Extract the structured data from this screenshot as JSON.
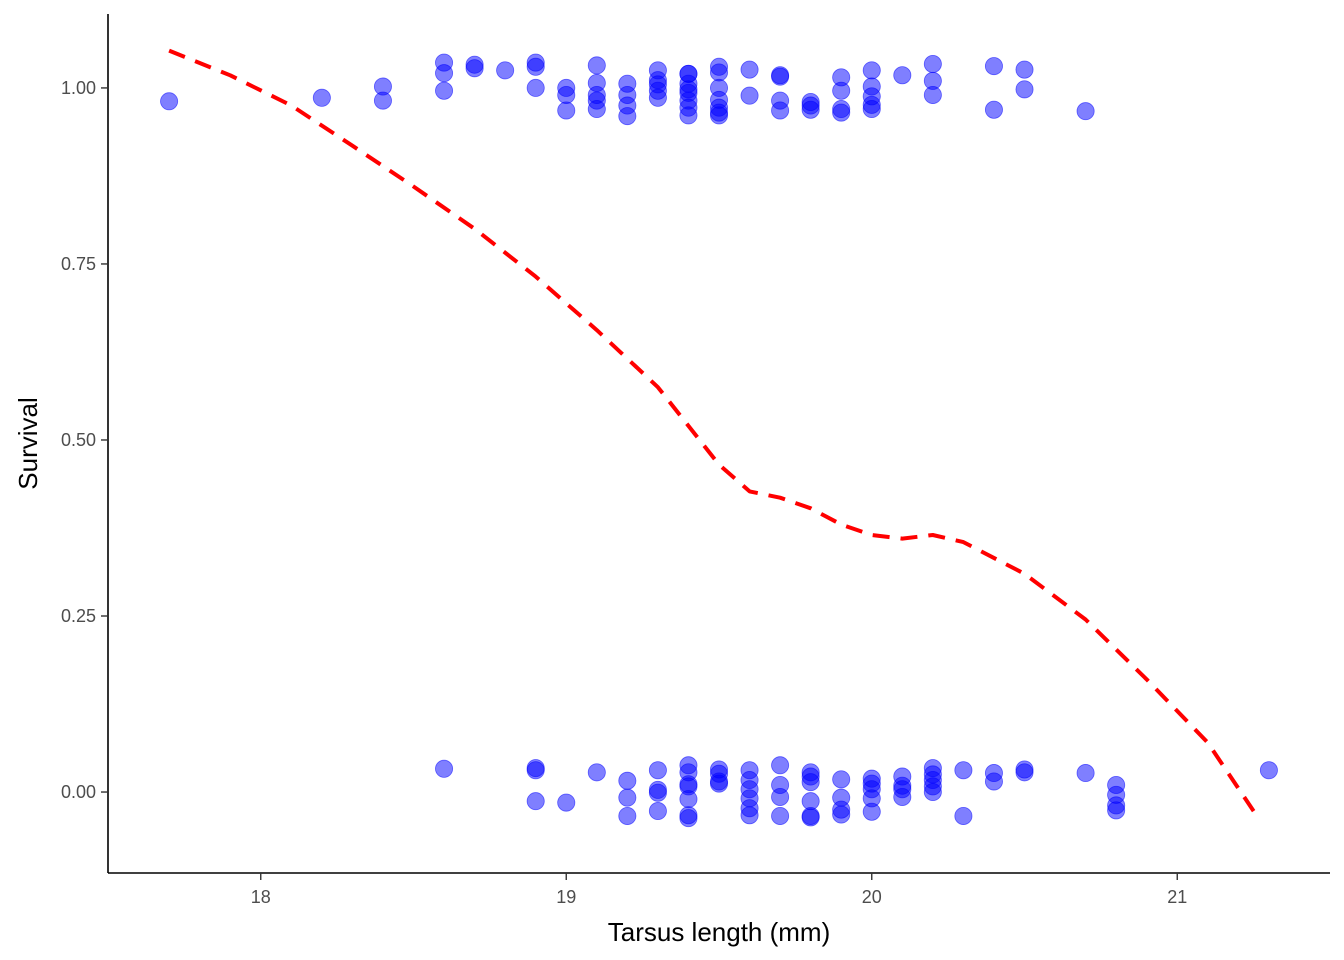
{
  "chart_data": {
    "type": "scatter",
    "title": "",
    "xlabel": "Tarsus length (mm)",
    "ylabel": "Survival",
    "xlim": [
      17.5,
      21.5
    ],
    "ylim": [
      -0.115,
      1.105
    ],
    "x_ticks": [
      18,
      19,
      20,
      21
    ],
    "x_tick_labels": [
      "18",
      "19",
      "20",
      "21"
    ],
    "y_ticks": [
      0,
      0.25,
      0.5,
      0.75,
      1.0
    ],
    "y_tick_labels": [
      "0.00",
      "0.25",
      "0.50",
      "0.75",
      "1.00"
    ],
    "grid": false,
    "legend": "none",
    "point_color": "#0000ff",
    "point_alpha": 0.5,
    "jitter": "points vertically jittered around 0 and 1",
    "points": [
      {
        "x": 17.7,
        "y": 0.981
      },
      {
        "x": 18.2,
        "y": 0.986
      },
      {
        "x": 18.4,
        "y": 1.002
      },
      {
        "x": 18.4,
        "y": 0.982
      },
      {
        "x": 18.6,
        "y": 1.036
      },
      {
        "x": 18.6,
        "y": 1.021
      },
      {
        "x": 18.6,
        "y": 0.996
      },
      {
        "x": 18.7,
        "y": 1.033
      },
      {
        "x": 18.7,
        "y": 1.028
      },
      {
        "x": 18.8,
        "y": 1.025
      },
      {
        "x": 18.9,
        "y": 1.036
      },
      {
        "x": 18.9,
        "y": 1.03
      },
      {
        "x": 18.9,
        "y": 1.0
      },
      {
        "x": 19.0,
        "y": 1.0
      },
      {
        "x": 19.0,
        "y": 0.99
      },
      {
        "x": 19.0,
        "y": 0.968
      },
      {
        "x": 19.1,
        "y": 1.032
      },
      {
        "x": 19.1,
        "y": 1.007
      },
      {
        "x": 19.1,
        "y": 0.99
      },
      {
        "x": 19.1,
        "y": 0.982
      },
      {
        "x": 19.1,
        "y": 0.97
      },
      {
        "x": 19.2,
        "y": 1.006
      },
      {
        "x": 19.2,
        "y": 0.99
      },
      {
        "x": 19.2,
        "y": 0.975
      },
      {
        "x": 19.2,
        "y": 0.96
      },
      {
        "x": 19.3,
        "y": 1.025
      },
      {
        "x": 19.3,
        "y": 1.011
      },
      {
        "x": 19.3,
        "y": 1.005
      },
      {
        "x": 19.3,
        "y": 0.996
      },
      {
        "x": 19.3,
        "y": 0.986
      },
      {
        "x": 19.4,
        "y": 1.02
      },
      {
        "x": 19.4,
        "y": 1.02
      },
      {
        "x": 19.4,
        "y": 1.006
      },
      {
        "x": 19.4,
        "y": 0.998
      },
      {
        "x": 19.4,
        "y": 0.993
      },
      {
        "x": 19.4,
        "y": 0.982
      },
      {
        "x": 19.4,
        "y": 0.972
      },
      {
        "x": 19.4,
        "y": 0.961
      },
      {
        "x": 19.5,
        "y": 1.03
      },
      {
        "x": 19.5,
        "y": 1.022
      },
      {
        "x": 19.5,
        "y": 1.0
      },
      {
        "x": 19.5,
        "y": 0.983
      },
      {
        "x": 19.5,
        "y": 0.972
      },
      {
        "x": 19.5,
        "y": 0.965
      },
      {
        "x": 19.5,
        "y": 0.961
      },
      {
        "x": 19.6,
        "y": 1.026
      },
      {
        "x": 19.6,
        "y": 0.989
      },
      {
        "x": 19.7,
        "y": 1.018
      },
      {
        "x": 19.7,
        "y": 1.016
      },
      {
        "x": 19.7,
        "y": 0.982
      },
      {
        "x": 19.7,
        "y": 0.968
      },
      {
        "x": 19.8,
        "y": 0.98
      },
      {
        "x": 19.8,
        "y": 0.975
      },
      {
        "x": 19.8,
        "y": 0.969
      },
      {
        "x": 19.9,
        "y": 1.015
      },
      {
        "x": 19.9,
        "y": 0.996
      },
      {
        "x": 19.9,
        "y": 0.97
      },
      {
        "x": 19.9,
        "y": 0.965
      },
      {
        "x": 20.0,
        "y": 1.025
      },
      {
        "x": 20.0,
        "y": 1.002
      },
      {
        "x": 20.0,
        "y": 0.988
      },
      {
        "x": 20.0,
        "y": 0.976
      },
      {
        "x": 20.0,
        "y": 0.97
      },
      {
        "x": 20.1,
        "y": 1.018
      },
      {
        "x": 20.2,
        "y": 1.034
      },
      {
        "x": 20.2,
        "y": 1.01
      },
      {
        "x": 20.2,
        "y": 0.99
      },
      {
        "x": 20.4,
        "y": 1.031
      },
      {
        "x": 20.4,
        "y": 0.969
      },
      {
        "x": 20.5,
        "y": 1.026
      },
      {
        "x": 20.5,
        "y": 0.998
      },
      {
        "x": 20.7,
        "y": 0.967
      },
      {
        "x": 18.6,
        "y": 0.033
      },
      {
        "x": 18.9,
        "y": 0.034
      },
      {
        "x": 18.9,
        "y": 0.031
      },
      {
        "x": 18.9,
        "y": -0.013
      },
      {
        "x": 19.0,
        "y": -0.015
      },
      {
        "x": 19.1,
        "y": 0.028
      },
      {
        "x": 19.2,
        "y": 0.016
      },
      {
        "x": 19.2,
        "y": -0.008
      },
      {
        "x": 19.2,
        "y": -0.034
      },
      {
        "x": 19.3,
        "y": 0.031
      },
      {
        "x": 19.3,
        "y": 0.003
      },
      {
        "x": 19.3,
        "y": -0.001
      },
      {
        "x": 19.3,
        "y": -0.027
      },
      {
        "x": 19.4,
        "y": 0.038
      },
      {
        "x": 19.4,
        "y": 0.028
      },
      {
        "x": 19.4,
        "y": 0.011
      },
      {
        "x": 19.4,
        "y": 0.008
      },
      {
        "x": 19.4,
        "y": -0.01
      },
      {
        "x": 19.4,
        "y": -0.033
      },
      {
        "x": 19.4,
        "y": -0.037
      },
      {
        "x": 19.5,
        "y": 0.032
      },
      {
        "x": 19.5,
        "y": 0.026
      },
      {
        "x": 19.5,
        "y": 0.015
      },
      {
        "x": 19.5,
        "y": 0.012
      },
      {
        "x": 19.6,
        "y": 0.031
      },
      {
        "x": 19.6,
        "y": 0.017
      },
      {
        "x": 19.6,
        "y": 0.004
      },
      {
        "x": 19.6,
        "y": -0.009
      },
      {
        "x": 19.6,
        "y": -0.023
      },
      {
        "x": 19.6,
        "y": -0.033
      },
      {
        "x": 19.7,
        "y": 0.038
      },
      {
        "x": 19.7,
        "y": 0.01
      },
      {
        "x": 19.7,
        "y": -0.007
      },
      {
        "x": 19.7,
        "y": -0.034
      },
      {
        "x": 19.8,
        "y": 0.028
      },
      {
        "x": 19.8,
        "y": 0.022
      },
      {
        "x": 19.8,
        "y": 0.014
      },
      {
        "x": 19.8,
        "y": -0.013
      },
      {
        "x": 19.8,
        "y": -0.034
      },
      {
        "x": 19.8,
        "y": -0.036
      },
      {
        "x": 19.9,
        "y": 0.018
      },
      {
        "x": 19.9,
        "y": -0.008
      },
      {
        "x": 19.9,
        "y": -0.025
      },
      {
        "x": 19.9,
        "y": -0.032
      },
      {
        "x": 20.0,
        "y": 0.019
      },
      {
        "x": 20.0,
        "y": 0.012
      },
      {
        "x": 20.0,
        "y": 0.004
      },
      {
        "x": 20.0,
        "y": -0.009
      },
      {
        "x": 20.0,
        "y": -0.028
      },
      {
        "x": 20.1,
        "y": 0.022
      },
      {
        "x": 20.1,
        "y": 0.009
      },
      {
        "x": 20.1,
        "y": 0.004
      },
      {
        "x": 20.1,
        "y": -0.007
      },
      {
        "x": 20.2,
        "y": 0.034
      },
      {
        "x": 20.2,
        "y": 0.025
      },
      {
        "x": 20.2,
        "y": 0.017
      },
      {
        "x": 20.2,
        "y": 0.008
      },
      {
        "x": 20.2,
        "y": 0.0
      },
      {
        "x": 20.3,
        "y": 0.031
      },
      {
        "x": 20.3,
        "y": -0.034
      },
      {
        "x": 20.4,
        "y": 0.027
      },
      {
        "x": 20.4,
        "y": 0.015
      },
      {
        "x": 20.5,
        "y": 0.032
      },
      {
        "x": 20.5,
        "y": 0.028
      },
      {
        "x": 20.7,
        "y": 0.027
      },
      {
        "x": 20.8,
        "y": 0.01
      },
      {
        "x": 20.8,
        "y": -0.004
      },
      {
        "x": 20.8,
        "y": -0.019
      },
      {
        "x": 20.8,
        "y": -0.026
      },
      {
        "x": 21.3,
        "y": 0.031
      }
    ],
    "trend_line": {
      "style": "dashed",
      "color": "#ff0000",
      "x": [
        17.7,
        17.9,
        18.1,
        18.3,
        18.5,
        18.7,
        18.9,
        19.1,
        19.3,
        19.5,
        19.6,
        19.7,
        19.8,
        19.9,
        20.0,
        20.1,
        20.2,
        20.3,
        20.5,
        20.7,
        20.9,
        21.1,
        21.27
      ],
      "y": [
        1.053,
        1.018,
        0.975,
        0.918,
        0.86,
        0.8,
        0.732,
        0.656,
        0.575,
        0.465,
        0.427,
        0.418,
        0.403,
        0.38,
        0.365,
        0.36,
        0.365,
        0.355,
        0.31,
        0.245,
        0.16,
        0.07,
        -0.04
      ]
    }
  }
}
